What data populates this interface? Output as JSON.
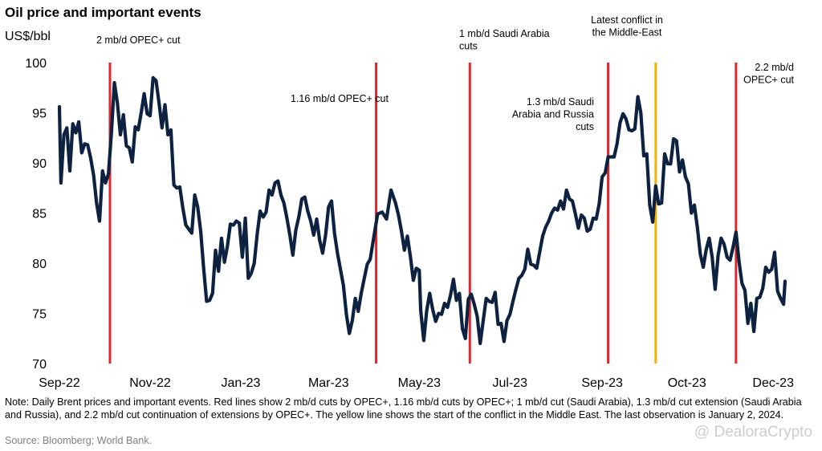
{
  "chart_data": {
    "type": "line",
    "title": "Oil price and important events",
    "ylabel": "US$/bbl",
    "ylim": [
      70,
      100
    ],
    "yticks": [
      70,
      75,
      80,
      85,
      90,
      95,
      100
    ],
    "x_start": "2022-09-01",
    "x_end": "2024-01-02",
    "xticks": [
      {
        "label": "Sep-22",
        "date": "2022-09-01"
      },
      {
        "label": "Nov-22",
        "date": "2022-11-01"
      },
      {
        "label": "Jan-23",
        "date": "2023-01-01"
      },
      {
        "label": "Mar-23",
        "date": "2023-03-01"
      },
      {
        "label": "May-23",
        "date": "2023-05-01"
      },
      {
        "label": "Jul-23",
        "date": "2023-07-01"
      },
      {
        "label": "Sep-23",
        "date": "2023-09-01"
      },
      {
        "label": "Oct-23",
        "date": "2023-10-28"
      },
      {
        "label": "Dec-23",
        "date": "2023-12-25"
      }
    ],
    "series": [
      {
        "color": "#0d2240",
        "points": [
          [
            "2022-09-01",
            95.6
          ],
          [
            "2022-09-02",
            88.0
          ],
          [
            "2022-09-04",
            92.8
          ],
          [
            "2022-09-06",
            93.5
          ],
          [
            "2022-09-08",
            89.2
          ],
          [
            "2022-09-10",
            93.9
          ],
          [
            "2022-09-12",
            93.0
          ],
          [
            "2022-09-14",
            94.1
          ],
          [
            "2022-09-16",
            91.0
          ],
          [
            "2022-09-18",
            91.9
          ],
          [
            "2022-09-20",
            91.8
          ],
          [
            "2022-09-22",
            90.5
          ],
          [
            "2022-09-24",
            88.8
          ],
          [
            "2022-09-26",
            86.0
          ],
          [
            "2022-09-28",
            84.2
          ],
          [
            "2022-09-30",
            89.2
          ],
          [
            "2022-10-02",
            88.0
          ],
          [
            "2022-10-04",
            88.9
          ],
          [
            "2022-10-06",
            93.0
          ],
          [
            "2022-10-08",
            98.0
          ],
          [
            "2022-10-10",
            96.0
          ],
          [
            "2022-10-12",
            92.8
          ],
          [
            "2022-10-14",
            94.8
          ],
          [
            "2022-10-16",
            91.7
          ],
          [
            "2022-10-18",
            91.5
          ],
          [
            "2022-10-20",
            90.1
          ],
          [
            "2022-10-22",
            93.6
          ],
          [
            "2022-10-24",
            93.3
          ],
          [
            "2022-10-26",
            95.0
          ],
          [
            "2022-10-28",
            96.9
          ],
          [
            "2022-10-30",
            94.9
          ],
          [
            "2022-11-01",
            94.7
          ],
          [
            "2022-11-03",
            98.5
          ],
          [
            "2022-11-05",
            98.2
          ],
          [
            "2022-11-07",
            96.0
          ],
          [
            "2022-11-09",
            93.5
          ],
          [
            "2022-11-11",
            95.8
          ],
          [
            "2022-11-13",
            92.8
          ],
          [
            "2022-11-15",
            93.3
          ],
          [
            "2022-11-17",
            87.8
          ],
          [
            "2022-11-19",
            87.5
          ],
          [
            "2022-11-21",
            87.6
          ],
          [
            "2022-11-23",
            85.5
          ],
          [
            "2022-11-25",
            83.8
          ],
          [
            "2022-11-27",
            83.4
          ],
          [
            "2022-11-29",
            83.0
          ],
          [
            "2022-12-01",
            86.8
          ],
          [
            "2022-12-03",
            85.6
          ],
          [
            "2022-12-05",
            83.2
          ],
          [
            "2022-12-07",
            79.5
          ],
          [
            "2022-12-09",
            76.2
          ],
          [
            "2022-12-11",
            76.3
          ],
          [
            "2022-12-13",
            77.0
          ],
          [
            "2022-12-15",
            81.3
          ],
          [
            "2022-12-17",
            79.2
          ],
          [
            "2022-12-19",
            82.5
          ],
          [
            "2022-12-21",
            80.1
          ],
          [
            "2022-12-23",
            81.7
          ],
          [
            "2022-12-25",
            83.9
          ],
          [
            "2022-12-27",
            83.8
          ],
          [
            "2022-12-29",
            84.2
          ],
          [
            "2022-12-31",
            84.0
          ],
          [
            "2023-01-02",
            80.6
          ],
          [
            "2023-01-04",
            84.5
          ],
          [
            "2023-01-06",
            78.5
          ],
          [
            "2023-01-08",
            79.0
          ],
          [
            "2023-01-10",
            80.0
          ],
          [
            "2023-01-12",
            82.9
          ],
          [
            "2023-01-14",
            85.2
          ],
          [
            "2023-01-16",
            84.6
          ],
          [
            "2023-01-18",
            85.1
          ],
          [
            "2023-01-20",
            87.3
          ],
          [
            "2023-01-22",
            86.8
          ],
          [
            "2023-01-24",
            88.0
          ],
          [
            "2023-01-26",
            88.2
          ],
          [
            "2023-01-28",
            86.8
          ],
          [
            "2023-01-30",
            86.0
          ],
          [
            "2023-02-01",
            84.5
          ],
          [
            "2023-02-03",
            82.8
          ],
          [
            "2023-02-05",
            80.8
          ],
          [
            "2023-02-07",
            83.3
          ],
          [
            "2023-02-09",
            84.6
          ],
          [
            "2023-02-11",
            86.4
          ],
          [
            "2023-02-13",
            86.6
          ],
          [
            "2023-02-15",
            85.2
          ],
          [
            "2023-02-17",
            84.2
          ],
          [
            "2023-02-19",
            82.8
          ],
          [
            "2023-02-21",
            84.4
          ],
          [
            "2023-02-23",
            82.3
          ],
          [
            "2023-02-25",
            81.0
          ],
          [
            "2023-02-27",
            82.8
          ],
          [
            "2023-03-01",
            85.6
          ],
          [
            "2023-03-03",
            86.2
          ],
          [
            "2023-03-05",
            83.0
          ],
          [
            "2023-03-07",
            81.0
          ],
          [
            "2023-03-09",
            79.4
          ],
          [
            "2023-03-11",
            77.8
          ],
          [
            "2023-03-13",
            74.9
          ],
          [
            "2023-03-15",
            73.0
          ],
          [
            "2023-03-17",
            74.3
          ],
          [
            "2023-03-19",
            76.5
          ],
          [
            "2023-03-21",
            75.2
          ],
          [
            "2023-03-23",
            77.0
          ],
          [
            "2023-03-25",
            78.5
          ],
          [
            "2023-03-27",
            79.9
          ],
          [
            "2023-03-29",
            80.4
          ],
          [
            "2023-04-03",
            84.9
          ],
          [
            "2023-04-06",
            85.1
          ],
          [
            "2023-04-09",
            84.4
          ],
          [
            "2023-04-12",
            87.3
          ],
          [
            "2023-04-15",
            86.0
          ],
          [
            "2023-04-17",
            84.8
          ],
          [
            "2023-04-19",
            83.2
          ],
          [
            "2023-04-21",
            81.3
          ],
          [
            "2023-04-23",
            82.7
          ],
          [
            "2023-04-25",
            80.7
          ],
          [
            "2023-04-27",
            78.3
          ],
          [
            "2023-04-29",
            79.5
          ],
          [
            "2023-05-01",
            79.3
          ],
          [
            "2023-05-02",
            75.3
          ],
          [
            "2023-05-04",
            72.3
          ],
          [
            "2023-05-06",
            75.3
          ],
          [
            "2023-05-08",
            77.0
          ],
          [
            "2023-05-10",
            75.4
          ],
          [
            "2023-05-12",
            74.2
          ],
          [
            "2023-05-14",
            75.0
          ],
          [
            "2023-05-16",
            74.9
          ],
          [
            "2023-05-18",
            76.0
          ],
          [
            "2023-05-20",
            75.6
          ],
          [
            "2023-05-22",
            76.8
          ],
          [
            "2023-05-24",
            78.4
          ],
          [
            "2023-05-26",
            76.3
          ],
          [
            "2023-05-28",
            77.0
          ],
          [
            "2023-05-30",
            73.5
          ],
          [
            "2023-06-01",
            72.5
          ],
          [
            "2023-06-03",
            76.4
          ],
          [
            "2023-06-05",
            76.9
          ],
          [
            "2023-06-07",
            75.9
          ],
          [
            "2023-06-09",
            74.7
          ],
          [
            "2023-06-11",
            72.0
          ],
          [
            "2023-06-13",
            74.3
          ],
          [
            "2023-06-15",
            76.5
          ],
          [
            "2023-06-17",
            76.2
          ],
          [
            "2023-06-19",
            76.1
          ],
          [
            "2023-06-21",
            77.1
          ],
          [
            "2023-06-23",
            73.9
          ],
          [
            "2023-06-25",
            74.0
          ],
          [
            "2023-06-27",
            72.2
          ],
          [
            "2023-06-29",
            74.3
          ],
          [
            "2023-07-01",
            74.9
          ],
          [
            "2023-07-03",
            76.2
          ],
          [
            "2023-07-05",
            77.4
          ],
          [
            "2023-07-07",
            78.5
          ],
          [
            "2023-07-09",
            78.8
          ],
          [
            "2023-07-11",
            79.4
          ],
          [
            "2023-07-13",
            81.4
          ],
          [
            "2023-07-15",
            79.9
          ],
          [
            "2023-07-17",
            79.8
          ],
          [
            "2023-07-19",
            79.5
          ],
          [
            "2023-07-21",
            81.1
          ],
          [
            "2023-07-23",
            82.7
          ],
          [
            "2023-07-25",
            83.6
          ],
          [
            "2023-07-27",
            84.2
          ],
          [
            "2023-07-29",
            85.0
          ],
          [
            "2023-07-31",
            85.5
          ],
          [
            "2023-08-02",
            85.3
          ],
          [
            "2023-08-04",
            86.2
          ],
          [
            "2023-08-06",
            85.4
          ],
          [
            "2023-08-08",
            87.3
          ],
          [
            "2023-08-10",
            86.4
          ],
          [
            "2023-08-12",
            86.2
          ],
          [
            "2023-08-14",
            84.9
          ],
          [
            "2023-08-16",
            83.5
          ],
          [
            "2023-08-18",
            84.8
          ],
          [
            "2023-08-20",
            84.5
          ],
          [
            "2023-08-22",
            83.2
          ],
          [
            "2023-08-24",
            83.4
          ],
          [
            "2023-08-26",
            84.5
          ],
          [
            "2023-08-28",
            84.4
          ],
          [
            "2023-08-30",
            85.9
          ],
          [
            "2023-09-01",
            88.6
          ],
          [
            "2023-09-03",
            89.0
          ],
          [
            "2023-09-05",
            90.6
          ],
          [
            "2023-09-07",
            90.6
          ],
          [
            "2023-09-09",
            90.6
          ],
          [
            "2023-09-11",
            91.9
          ],
          [
            "2023-09-13",
            94.0
          ],
          [
            "2023-09-15",
            94.9
          ],
          [
            "2023-09-17",
            94.4
          ],
          [
            "2023-09-19",
            93.3
          ],
          [
            "2023-09-21",
            93.2
          ],
          [
            "2023-09-23",
            93.4
          ],
          [
            "2023-09-25",
            96.6
          ],
          [
            "2023-09-27",
            95.0
          ],
          [
            "2023-09-29",
            90.7
          ],
          [
            "2023-10-01",
            90.9
          ],
          [
            "2023-10-03",
            85.8
          ],
          [
            "2023-10-05",
            84.1
          ],
          [
            "2023-10-07",
            87.7
          ],
          [
            "2023-10-09",
            85.9
          ],
          [
            "2023-10-11",
            86.0
          ],
          [
            "2023-10-13",
            90.9
          ],
          [
            "2023-10-15",
            89.9
          ],
          [
            "2023-10-17",
            89.9
          ],
          [
            "2023-10-19",
            92.4
          ],
          [
            "2023-10-21",
            92.2
          ],
          [
            "2023-10-23",
            89.1
          ],
          [
            "2023-10-25",
            90.3
          ],
          [
            "2023-10-27",
            88.6
          ],
          [
            "2023-10-29",
            87.9
          ],
          [
            "2023-10-31",
            85.0
          ],
          [
            "2023-11-02",
            85.8
          ],
          [
            "2023-11-04",
            83.6
          ],
          [
            "2023-11-06",
            80.9
          ],
          [
            "2023-11-08",
            79.6
          ],
          [
            "2023-11-10",
            81.4
          ],
          [
            "2023-11-12",
            82.5
          ],
          [
            "2023-11-14",
            80.6
          ],
          [
            "2023-11-16",
            77.4
          ],
          [
            "2023-11-18",
            80.8
          ],
          [
            "2023-11-20",
            82.5
          ],
          [
            "2023-11-22",
            81.9
          ],
          [
            "2023-11-24",
            80.6
          ],
          [
            "2023-11-26",
            80.3
          ],
          [
            "2023-11-28",
            81.6
          ],
          [
            "2023-11-30",
            83.1
          ],
          [
            "2023-12-02",
            80.2
          ],
          [
            "2023-12-04",
            78.0
          ],
          [
            "2023-12-06",
            77.3
          ],
          [
            "2023-12-08",
            74.0
          ],
          [
            "2023-12-10",
            76.0
          ],
          [
            "2023-12-12",
            73.2
          ],
          [
            "2023-12-14",
            76.5
          ],
          [
            "2023-12-16",
            76.6
          ],
          [
            "2023-12-18",
            77.5
          ],
          [
            "2023-12-20",
            79.6
          ],
          [
            "2023-12-22",
            79.1
          ],
          [
            "2023-12-24",
            79.4
          ],
          [
            "2023-12-26",
            81.1
          ],
          [
            "2023-12-28",
            77.2
          ],
          [
            "2023-12-30",
            76.5
          ],
          [
            "2024-01-01",
            75.9
          ],
          [
            "2024-01-02",
            78.2
          ]
        ]
      }
    ],
    "events": [
      {
        "date": "2022-10-05",
        "color": "#e3242b",
        "lines": [
          "2 mb/d OPEC+ cut"
        ]
      },
      {
        "date": "2023-04-02",
        "color": "#e3242b",
        "lines": [
          "1.16 mb/d OPEC+ cut"
        ]
      },
      {
        "date": "2023-06-04",
        "color": "#e3242b",
        "lines": [
          "1 mb/d Saudi Arabia",
          "cuts"
        ]
      },
      {
        "date": "2023-09-05",
        "color": "#e3242b",
        "lines": [
          "1.3 mb/d Saudi",
          "Arabia and Russia",
          "cuts"
        ]
      },
      {
        "date": "2023-10-07",
        "color": "#f5b000",
        "lines": [
          "Latest conflict in",
          "the Middle-East"
        ]
      },
      {
        "date": "2023-11-30",
        "color": "#e3242b",
        "lines": [
          "2.2 mb/d",
          "OPEC+ cut"
        ]
      }
    ]
  },
  "footer": {
    "note": "Note: Daily Brent prices and important events. Red lines show 2 mb/d cuts by OPEC+, 1.16 mb/d cuts by OPEC+; 1 mb/d cut (Saudi Arabia), 1.3 mb/d cut extension (Saudi Arabia and Russia), and  2.2 mb/d cut continuation of extensions by OPEC+. The yellow line shows the start of the conflict in the Middle East. The last observation is January 2, 2024.",
    "source": "Source: Bloomberg; World Bank.",
    "watermark": "@ DealoraCrypto"
  }
}
